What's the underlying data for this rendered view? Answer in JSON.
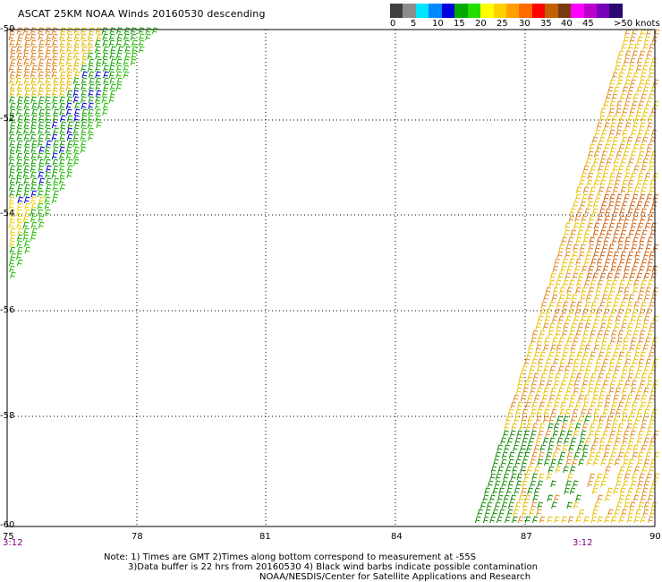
{
  "title": "ASCAT 25KM NOAA Winds 20160530 descending",
  "legend": {
    "colors": [
      "#404040",
      "#8c8c8c",
      "#00e5ff",
      "#0088ff",
      "#0000dd",
      "#00aa00",
      "#22dd00",
      "#ffff00",
      "#ffd000",
      "#ffa000",
      "#ff6a00",
      "#ff0000",
      "#c06000",
      "#7a3a10",
      "#ff00ff",
      "#bb00cc",
      "#7700bb",
      "#2a0a70"
    ],
    "labels": [
      "0",
      "5",
      "10",
      "15",
      "20",
      "25",
      "30",
      "35",
      "40",
      "45",
      ">50 knots"
    ]
  },
  "map": {
    "lat_labels": [
      "-50",
      "-52",
      "-54",
      "-56",
      "-58",
      "-60"
    ],
    "lon_labels": [
      "75",
      "78",
      "81",
      "84",
      "87",
      "90"
    ],
    "time_labels": [
      "3:12",
      "3:12"
    ],
    "grid": true
  },
  "notes": [
    "Note: 1) Times are GMT 2)Times along bottom correspond to measurement at -55S",
    "3)Data buffer is 22 hrs from 20160530 4) Black wind barbs indicate possible contamination",
    "NOAA/NESDIS/Center for Satellite Applications and Research"
  ]
}
